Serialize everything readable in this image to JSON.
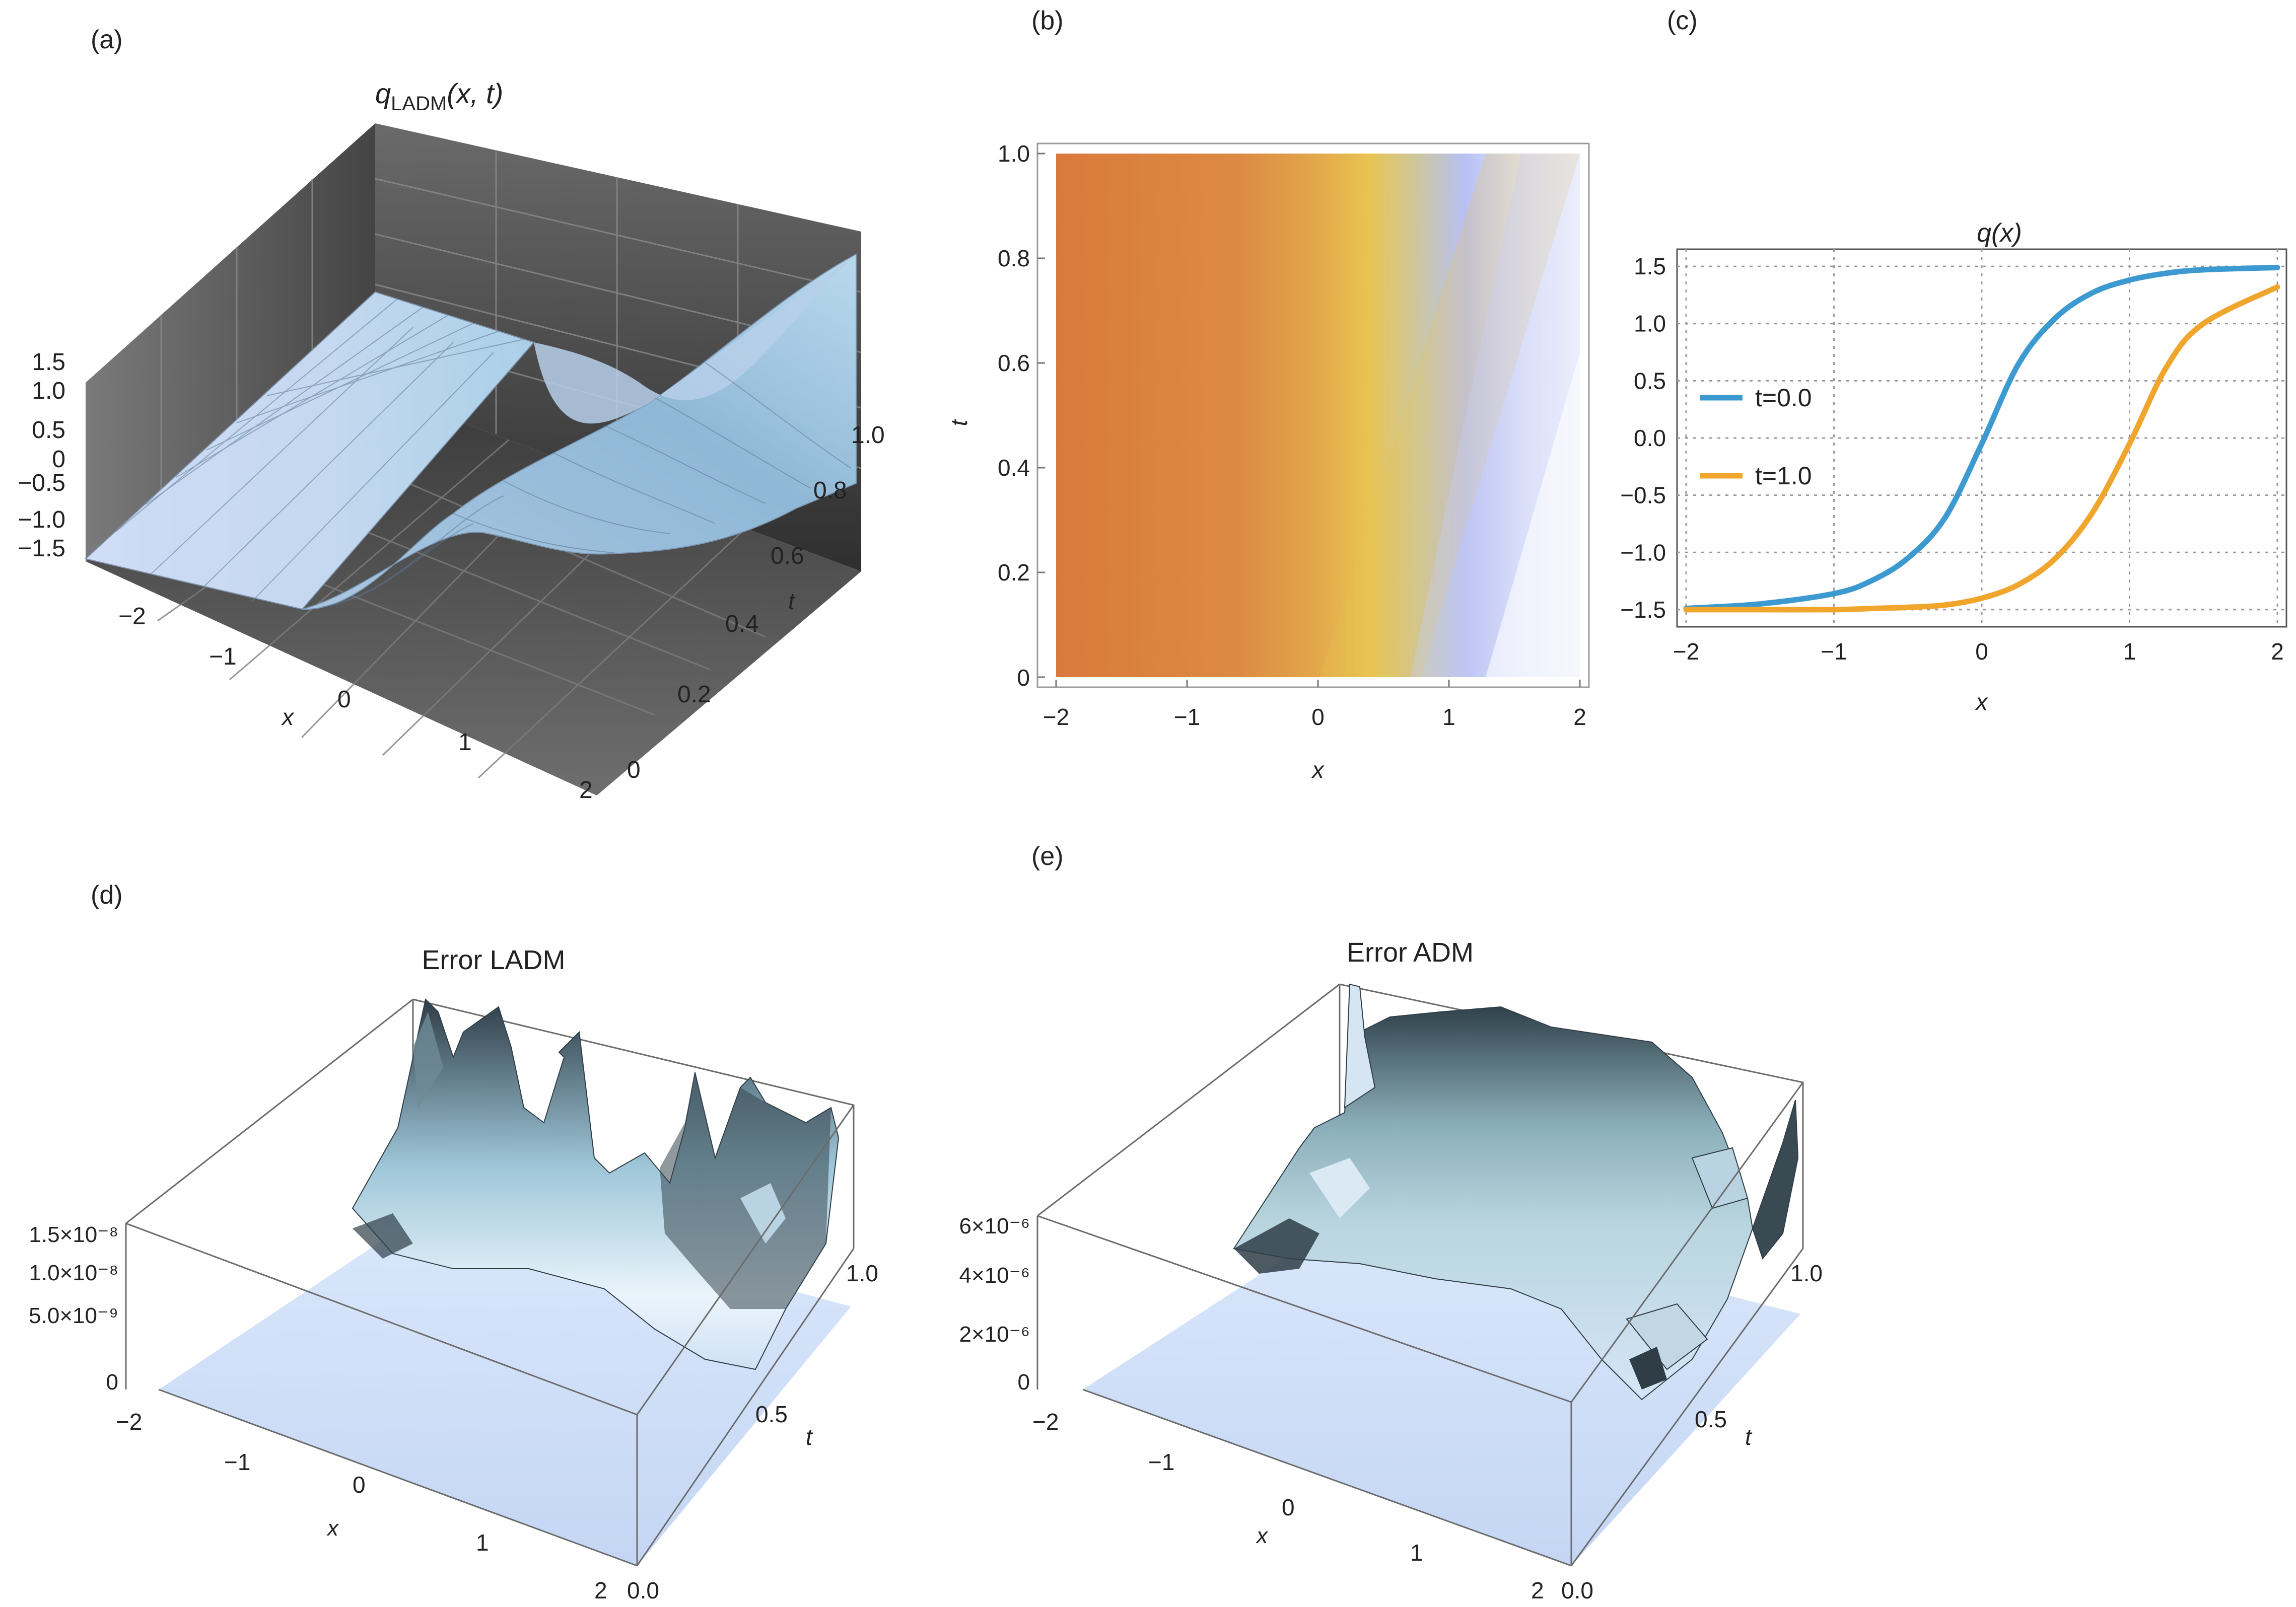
{
  "colors": {
    "surface": "#c8dcf3",
    "box_dark": "#3e3e3e",
    "density_left": "#d97a3c",
    "density_mid": "#e6bf50",
    "density_right": "#b4bdf4",
    "line_t0": "#3d9ad1",
    "line_t1": "#f0a52d",
    "error_surface_dark": "#2f3d47",
    "error_surface_light": "#d7e8f5"
  },
  "panels": {
    "a": {
      "label": "(a)",
      "title_main": "q",
      "title_sub": "LADM",
      "title_args": "(x, t)",
      "z_ticks": [
        "1.5",
        "1.0",
        "0.5",
        "0",
        "−0.5",
        "−1.0",
        "−1.5"
      ],
      "x_ticks": [
        "−2",
        "−1",
        "0",
        "1",
        "2"
      ],
      "t_ticks": [
        "0",
        "0.2",
        "0.4",
        "0.6",
        "0.8",
        "1.0"
      ],
      "x_label": "x",
      "t_label": "t"
    },
    "b": {
      "label": "(b)",
      "x_ticks": [
        "−2",
        "−1",
        "0",
        "1",
        "2"
      ],
      "t_ticks": [
        "0",
        "0.2",
        "0.4",
        "0.6",
        "0.8",
        "1.0"
      ],
      "x_label": "x",
      "t_label": "t"
    },
    "c": {
      "label": "(c)",
      "title": "q(x)",
      "x_label": "x"
    },
    "d": {
      "label": "(d)",
      "title": "Error LADM",
      "z_ticks": [
        "1.5×10⁻⁸",
        "1.0×10⁻⁸",
        "5.0×10⁻⁹",
        "0"
      ],
      "x_ticks": [
        "−2",
        "−1",
        "0",
        "1",
        "2"
      ],
      "t_ticks": [
        "0.0",
        "0.5",
        "1.0"
      ],
      "x_label": "x",
      "t_label": "t"
    },
    "e": {
      "label": "(e)",
      "title": "Error ADM",
      "z_ticks": [
        "6×10⁻⁶",
        "4×10⁻⁶",
        "2×10⁻⁶",
        "0"
      ],
      "x_ticks": [
        "−2",
        "−1",
        "0",
        "1",
        "2"
      ],
      "t_ticks": [
        "0.0",
        "0.5",
        "1.0"
      ],
      "x_label": "x",
      "t_label": "t"
    }
  },
  "chart_data": [
    {
      "type": "surface3d",
      "title": "qLADM(x, t)",
      "xlabel": "x",
      "ylabel": "t",
      "xlim": [
        -2,
        2
      ],
      "ylim": [
        0,
        1
      ],
      "zlim": [
        -1.5,
        1.5
      ],
      "function": "1.5*tanh(1.5*(x - t))",
      "samples_x": [
        -2,
        -1.5,
        -1,
        -0.5,
        0,
        0.5,
        1,
        1.5,
        2
      ],
      "z_at_t0": [
        -1.49,
        -1.45,
        -1.36,
        -0.95,
        0,
        0.95,
        1.36,
        1.45,
        1.49
      ],
      "z_at_t1": [
        -1.5,
        -1.5,
        -1.49,
        -1.45,
        -1.36,
        -0.95,
        0,
        0.95,
        1.36
      ]
    },
    {
      "type": "heatmap",
      "xlabel": "x",
      "ylabel": "t",
      "xlim": [
        -2,
        2
      ],
      "ylim": [
        0,
        1
      ],
      "description_values": "density of q(x,t): orange for q = -1.5, yellow near transition, white for q = 1.5; transition front moves from x = 0.4 at t = 0 to x = 1.2 at t = 1"
    },
    {
      "type": "line",
      "title": "q(x)",
      "xlabel": "x",
      "xlim": [
        -2,
        2
      ],
      "ylim": [
        -1.65,
        1.65
      ],
      "x_ticks": [
        -2,
        -1,
        0,
        1,
        2
      ],
      "y_ticks": [
        -1.5,
        -1.0,
        -0.5,
        0.0,
        0.5,
        1.0,
        1.5
      ],
      "y_tick_labels": [
        "−1.5",
        "−1.0",
        "−0.5",
        "0.0",
        "0.5",
        "1.0",
        "1.5"
      ],
      "x_tick_labels": [
        "−2",
        "−1",
        "0",
        "1",
        "2"
      ],
      "grid": true,
      "legend_position": "left",
      "x": [
        -2,
        -1.5,
        -1,
        -0.75,
        -0.5,
        -0.25,
        0,
        0.25,
        0.5,
        0.75,
        1,
        1.25,
        1.5,
        2
      ],
      "series": [
        {
          "name": "t=0.0",
          "values": [
            -1.49,
            -1.45,
            -1.36,
            -1.25,
            -1.05,
            -0.7,
            -0.05,
            0.65,
            1.05,
            1.27,
            1.38,
            1.44,
            1.47,
            1.49
          ]
        },
        {
          "name": "t=1.0",
          "values": [
            -1.5,
            -1.5,
            -1.5,
            -1.49,
            -1.48,
            -1.46,
            -1.4,
            -1.28,
            -1.05,
            -0.65,
            -0.05,
            0.62,
            1.0,
            1.32
          ]
        }
      ]
    },
    {
      "type": "surface3d",
      "title": "Error LADM",
      "xlabel": "x",
      "ylabel": "t",
      "xlim": [
        -2,
        2
      ],
      "ylim": [
        0,
        1
      ],
      "zlim": [
        0,
        1.5e-08
      ],
      "peak_z_at_t1": [
        1.9e-08,
        1.3e-08,
        1.55e-08,
        6e-09,
        1.6e-08,
        1.5e-08,
        1e-08
      ]
    },
    {
      "type": "surface3d",
      "title": "Error ADM",
      "xlabel": "x",
      "ylabel": "t",
      "xlim": [
        -2,
        2
      ],
      "ylim": [
        0,
        1
      ],
      "zlim": [
        0,
        6e-06
      ],
      "peak_z_at_t1": [
        8e-06,
        6e-06,
        7e-06,
        7e-06,
        6.5e-06,
        5e-06,
        4e-06
      ]
    }
  ]
}
